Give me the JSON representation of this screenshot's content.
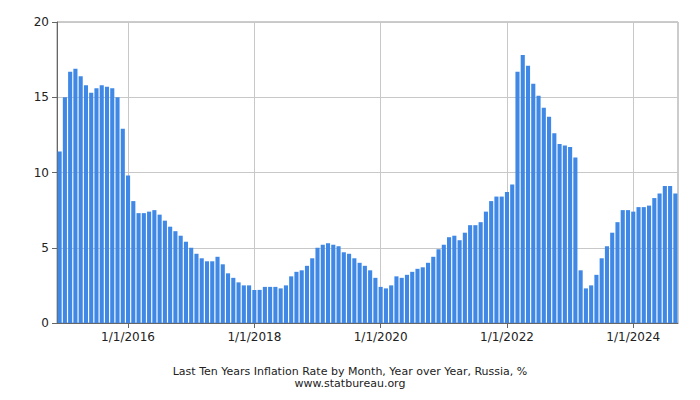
{
  "chart_data": {
    "type": "bar",
    "title": "Last Ten Years Inflation Rate by Month, Year over Year, Russia, %",
    "subtitle": "www.statbureau.org",
    "categories": [
      null,
      null,
      null,
      null,
      null,
      null,
      null,
      null,
      null,
      null,
      null,
      null,
      null,
      "1/1/2016",
      null,
      null,
      null,
      null,
      null,
      null,
      null,
      null,
      null,
      null,
      null,
      null,
      null,
      null,
      null,
      null,
      null,
      null,
      null,
      null,
      null,
      null,
      null,
      "1/1/2018",
      null,
      null,
      null,
      null,
      null,
      null,
      null,
      null,
      null,
      null,
      null,
      null,
      null,
      null,
      null,
      null,
      null,
      null,
      null,
      null,
      null,
      null,
      null,
      "1/1/2020",
      null,
      null,
      null,
      null,
      null,
      null,
      null,
      null,
      null,
      null,
      null,
      null,
      null,
      null,
      null,
      null,
      null,
      null,
      null,
      null,
      null,
      null,
      null,
      "1/1/2022",
      null,
      null,
      null,
      null,
      null,
      null,
      null,
      null,
      null,
      null,
      null,
      null,
      null,
      null,
      null,
      null,
      null,
      null,
      null,
      null,
      null,
      null,
      null,
      "1/1/2024",
      null,
      null,
      null,
      null,
      null,
      null,
      null,
      null
    ],
    "values": [
      11.4,
      15.0,
      16.7,
      16.9,
      16.4,
      15.8,
      15.3,
      15.6,
      15.8,
      15.7,
      15.6,
      15.0,
      12.9,
      9.8,
      8.1,
      7.3,
      7.3,
      7.4,
      7.5,
      7.2,
      6.8,
      6.4,
      6.1,
      5.8,
      5.4,
      5.0,
      4.6,
      4.3,
      4.1,
      4.1,
      4.4,
      3.9,
      3.3,
      3.0,
      2.7,
      2.5,
      2.5,
      2.2,
      2.2,
      2.4,
      2.4,
      2.4,
      2.3,
      2.5,
      3.1,
      3.4,
      3.5,
      3.8,
      4.3,
      5.0,
      5.2,
      5.3,
      5.2,
      5.1,
      4.7,
      4.6,
      4.3,
      4.0,
      3.8,
      3.5,
      3.0,
      2.4,
      2.3,
      2.5,
      3.1,
      3.0,
      3.2,
      3.4,
      3.6,
      3.7,
      4.0,
      4.4,
      4.9,
      5.2,
      5.7,
      5.8,
      5.5,
      6.0,
      6.5,
      6.5,
      6.7,
      7.4,
      8.1,
      8.4,
      8.4,
      8.7,
      9.2,
      16.7,
      17.8,
      17.1,
      15.9,
      15.1,
      14.3,
      13.7,
      12.6,
      11.9,
      11.8,
      11.7,
      11.0,
      3.5,
      2.3,
      2.5,
      3.2,
      4.3,
      5.1,
      6.0,
      6.7,
      7.5,
      7.5,
      7.4,
      7.7,
      7.7,
      7.8,
      8.3,
      8.6,
      9.1,
      9.1,
      8.6
    ],
    "color": "#3f88e6",
    "ylim": [
      0,
      20
    ],
    "yticks": [
      0,
      5,
      10,
      15,
      20
    ],
    "grid": true
  }
}
